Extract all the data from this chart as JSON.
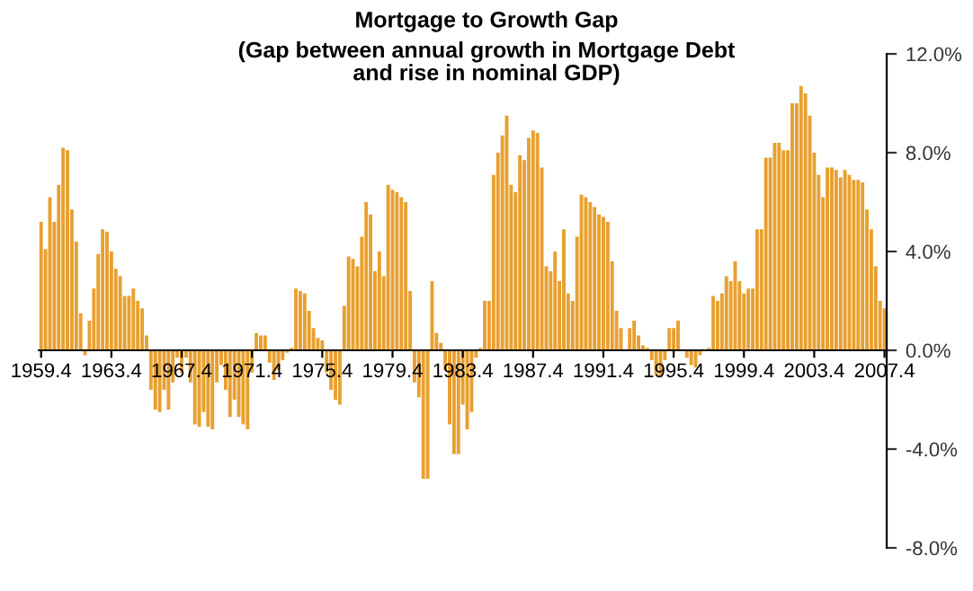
{
  "chart_data": {
    "type": "bar",
    "title": "Mortgage to Growth Gap",
    "subtitle": "(Gap between annual growth in Mortgage Debt\nand rise in nominal GDP)",
    "categories": [
      "1959.4",
      null,
      null,
      null,
      null,
      null,
      null,
      null,
      null,
      null,
      null,
      null,
      null,
      null,
      null,
      null,
      "1963.4",
      null,
      null,
      null,
      null,
      null,
      null,
      null,
      null,
      null,
      null,
      null,
      null,
      null,
      null,
      null,
      "1967.4",
      null,
      null,
      null,
      null,
      null,
      null,
      null,
      null,
      null,
      null,
      null,
      null,
      null,
      null,
      null,
      "1971.4",
      null,
      null,
      null,
      null,
      null,
      null,
      null,
      null,
      null,
      null,
      null,
      null,
      null,
      null,
      null,
      "1975.4",
      null,
      null,
      null,
      null,
      null,
      null,
      null,
      null,
      null,
      null,
      null,
      null,
      null,
      null,
      null,
      "1979.4",
      null,
      null,
      null,
      null,
      null,
      null,
      null,
      null,
      null,
      null,
      null,
      null,
      null,
      null,
      null,
      "1983.4",
      null,
      null,
      null,
      null,
      null,
      null,
      null,
      null,
      null,
      null,
      null,
      null,
      null,
      null,
      null,
      "1987.4",
      null,
      null,
      null,
      null,
      null,
      null,
      null,
      null,
      null,
      null,
      null,
      null,
      null,
      null,
      null,
      "1991.4",
      null,
      null,
      null,
      null,
      null,
      null,
      null,
      null,
      null,
      null,
      null,
      null,
      null,
      null,
      null,
      "1995.4",
      null,
      null,
      null,
      null,
      null,
      null,
      null,
      null,
      null,
      null,
      null,
      null,
      null,
      null,
      null,
      "1999.4",
      null,
      null,
      null,
      null,
      null,
      null,
      null,
      null,
      null,
      null,
      null,
      null,
      null,
      null,
      null,
      "2003.4",
      null,
      null,
      null,
      null,
      null,
      null,
      null,
      null,
      null,
      null,
      null,
      null,
      null,
      null,
      null,
      "2007.4"
    ],
    "values": [
      5.2,
      4.1,
      6.2,
      5.2,
      6.7,
      8.2,
      8.1,
      5.7,
      4.4,
      1.5,
      -0.2,
      1.2,
      2.5,
      3.9,
      4.9,
      4.8,
      4.0,
      3.3,
      3.0,
      2.2,
      2.2,
      2.5,
      2.0,
      1.7,
      0.6,
      -1.6,
      -2.4,
      -2.5,
      -1.6,
      -2.4,
      -1.3,
      -0.3,
      -0.9,
      -0.3,
      -1.3,
      -3.0,
      -3.1,
      -2.5,
      -3.1,
      -3.2,
      -1.3,
      -0.6,
      -1.6,
      -2.7,
      -2.0,
      -2.7,
      -3.0,
      -3.2,
      -0.9,
      0.7,
      0.6,
      0.6,
      -0.5,
      -1.2,
      -0.8,
      -0.4,
      -0.1,
      0.1,
      2.5,
      2.4,
      2.3,
      1.6,
      0.9,
      0.5,
      0.4,
      -0.9,
      -1.6,
      -2.0,
      -2.2,
      1.8,
      3.8,
      3.7,
      3.4,
      4.6,
      6.0,
      5.5,
      3.2,
      4.0,
      3.0,
      6.7,
      6.5,
      6.4,
      6.2,
      6.0,
      2.4,
      -1.3,
      -1.9,
      -5.2,
      -5.2,
      2.8,
      0.7,
      0.3,
      -0.8,
      -3.0,
      -4.2,
      -4.2,
      -2.2,
      -3.2,
      -2.5,
      -0.3,
      0.1,
      2.0,
      2.0,
      7.1,
      8.0,
      8.7,
      9.5,
      6.7,
      6.4,
      7.9,
      7.7,
      8.6,
      8.9,
      8.8,
      7.4,
      3.4,
      3.2,
      4.0,
      2.8,
      4.9,
      2.3,
      2.0,
      4.6,
      6.3,
      6.2,
      6.0,
      5.8,
      5.5,
      5.4,
      5.2,
      3.6,
      1.6,
      0.9,
      0.0,
      0.9,
      1.2,
      0.6,
      0.2,
      0.1,
      -0.4,
      -1.0,
      -1.1,
      -0.4,
      0.9,
      0.9,
      1.2,
      0.0,
      -0.3,
      -0.6,
      -0.7,
      -0.2,
      0.0,
      0.1,
      2.2,
      2.0,
      2.3,
      3.0,
      2.8,
      3.6,
      2.8,
      2.3,
      2.5,
      2.5,
      4.9,
      4.9,
      7.8,
      7.8,
      8.4,
      8.4,
      8.1,
      8.1,
      10.0,
      10.0,
      10.7,
      10.4,
      9.5,
      8.0,
      7.1,
      6.2,
      7.4,
      7.4,
      7.3,
      7.0,
      7.3,
      7.1,
      6.9,
      6.9,
      6.8,
      5.7,
      4.9,
      3.4,
      2.0,
      1.7
    ],
    "color": "#e8a030",
    "ylim": [
      -8,
      12
    ],
    "yticks": [
      {
        "value": -8,
        "label": "-8.0%"
      },
      {
        "value": -4,
        "label": "-4.0%"
      },
      {
        "value": 0,
        "label": "0.0%"
      },
      {
        "value": 4,
        "label": "4.0%"
      },
      {
        "value": 8,
        "label": "8.0%"
      },
      {
        "value": 12,
        "label": "12.0%"
      }
    ],
    "grid": false
  }
}
